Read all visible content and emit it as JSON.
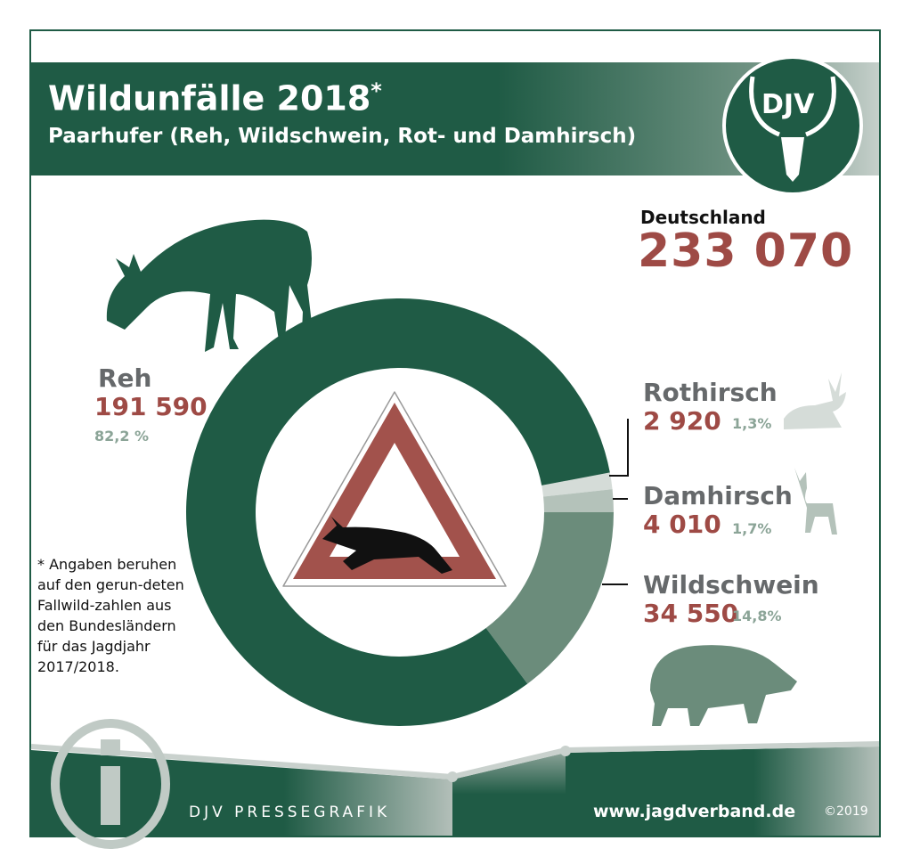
{
  "header": {
    "title": "Wildunfälle 2018",
    "title_mark": "*",
    "subtitle": "Paarhufer (Reh, Wildschwein, Rot- und Damhirsch)",
    "logo_text": "DJV"
  },
  "total": {
    "label": "Deutschland",
    "value": "233 070"
  },
  "note": "* Angaben beruhen auf den gerun-deten Fallwild-zahlen aus den Bundesländern für das Jagdjahr 2017/2018.",
  "footer": {
    "brand": "DJV PRESSEGRAFIK",
    "url": "www.jagdverband.de",
    "copyright": "©2019"
  },
  "colors": {
    "dark_green": "#1f5b45",
    "red": "#9e4a45"
  },
  "chart_data": {
    "type": "pie",
    "donut": true,
    "series": [
      {
        "name": "Reh",
        "value": 191590,
        "value_label": "191 590",
        "percent_label": "82,2 %",
        "color": "#1f5b45"
      },
      {
        "name": "Rothirsch",
        "value": 2920,
        "value_label": "2 920",
        "percent_label": "1,3%",
        "color": "#d5dcd8"
      },
      {
        "name": "Damhirsch",
        "value": 4010,
        "value_label": "4 010",
        "percent_label": "1,7%",
        "color": "#b4c2ba"
      },
      {
        "name": "Wildschwein",
        "value": 34550,
        "value_label": "34 550",
        "percent_label": "14,8%",
        "color": "#6b8c7b"
      }
    ]
  }
}
